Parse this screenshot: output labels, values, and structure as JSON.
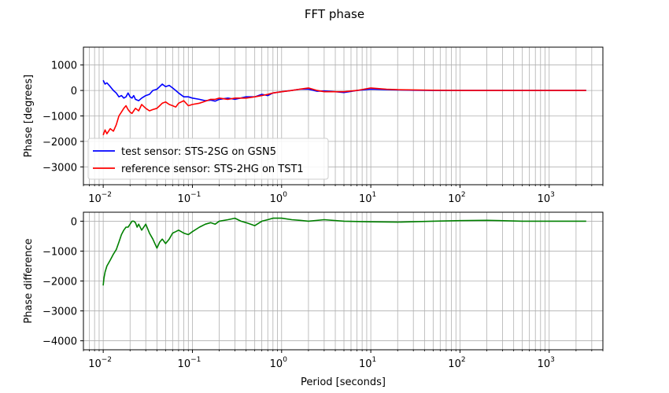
{
  "figure": {
    "title": "FFT phase",
    "background": "#ffffff"
  },
  "chart_data": [
    {
      "type": "line",
      "name": "top-panel",
      "xscale": "log",
      "xlim": [
        0.006,
        4000
      ],
      "ylim": [
        -3700,
        1700
      ],
      "xlabel": "",
      "ylabel": "Phase [degrees]",
      "grid": true,
      "x_ticks": [
        "10",
        "10",
        "10",
        "10",
        "10",
        "10"
      ],
      "x_tick_exponents": [
        "−2",
        "−1",
        "0",
        "1",
        "2",
        "3"
      ],
      "x_tick_values": [
        0.01,
        0.1,
        1,
        10,
        100,
        1000
      ],
      "y_ticks": [
        "1000",
        "0",
        "−1000",
        "−2000",
        "−3000"
      ],
      "y_tick_values": [
        1000,
        0,
        -1000,
        -2000,
        -3000
      ],
      "legend": {
        "placement": "lower-left"
      },
      "series": [
        {
          "name": "test sensor: STS-2SG on GSN5",
          "color": "#0000ff",
          "x": [
            0.01,
            0.0105,
            0.011,
            0.012,
            0.013,
            0.014,
            0.015,
            0.016,
            0.017,
            0.018,
            0.019,
            0.02,
            0.021,
            0.022,
            0.023,
            0.025,
            0.027,
            0.03,
            0.033,
            0.036,
            0.04,
            0.043,
            0.046,
            0.05,
            0.055,
            0.06,
            0.065,
            0.07,
            0.08,
            0.09,
            0.1,
            0.12,
            0.14,
            0.16,
            0.18,
            0.2,
            0.25,
            0.3,
            0.4,
            0.5,
            0.6,
            0.7,
            0.8,
            1.0,
            1.3,
            1.6,
            2.0,
            2.5,
            3.0,
            4.0,
            5.0,
            7.0,
            10,
            15,
            20,
            30,
            50,
            100,
            200,
            500,
            1000,
            2600
          ],
          "y": [
            400,
            250,
            300,
            150,
            0,
            -100,
            -250,
            -200,
            -300,
            -250,
            -100,
            -250,
            -300,
            -200,
            -350,
            -400,
            -300,
            -200,
            -150,
            0,
            50,
            150,
            250,
            150,
            200,
            100,
            0,
            -100,
            -250,
            -250,
            -300,
            -350,
            -400,
            -380,
            -420,
            -350,
            -300,
            -350,
            -250,
            -250,
            -150,
            -200,
            -100,
            -50,
            0,
            50,
            50,
            -30,
            -20,
            -50,
            -80,
            0,
            50,
            30,
            20,
            10,
            0,
            0,
            0,
            0,
            0,
            0
          ]
        },
        {
          "name": "reference sensor: STS-2HG on TST1",
          "color": "#ff0000",
          "x": [
            0.01,
            0.0105,
            0.011,
            0.012,
            0.013,
            0.014,
            0.015,
            0.016,
            0.017,
            0.018,
            0.019,
            0.02,
            0.021,
            0.022,
            0.023,
            0.025,
            0.027,
            0.03,
            0.033,
            0.036,
            0.04,
            0.043,
            0.046,
            0.05,
            0.055,
            0.06,
            0.065,
            0.07,
            0.08,
            0.09,
            0.1,
            0.12,
            0.14,
            0.16,
            0.18,
            0.2,
            0.25,
            0.3,
            0.4,
            0.5,
            0.6,
            0.7,
            0.8,
            1.0,
            1.3,
            1.6,
            2.0,
            2.5,
            3.0,
            4.0,
            5.0,
            7.0,
            10,
            15,
            20,
            30,
            50,
            100,
            200,
            500,
            1000,
            2600
          ],
          "y": [
            -1750,
            -1550,
            -1700,
            -1500,
            -1600,
            -1350,
            -1000,
            -850,
            -700,
            -600,
            -750,
            -850,
            -900,
            -800,
            -700,
            -800,
            -550,
            -700,
            -800,
            -750,
            -700,
            -600,
            -500,
            -450,
            -550,
            -600,
            -650,
            -500,
            -400,
            -600,
            -550,
            -500,
            -420,
            -350,
            -350,
            -300,
            -350,
            -300,
            -300,
            -250,
            -200,
            -150,
            -100,
            -50,
            0,
            50,
            100,
            0,
            -50,
            -50,
            -50,
            0,
            100,
            50,
            30,
            20,
            10,
            0,
            0,
            0,
            0,
            0
          ]
        }
      ]
    },
    {
      "type": "line",
      "name": "bottom-panel",
      "xscale": "log",
      "xlim": [
        0.006,
        4000
      ],
      "ylim": [
        -4300,
        300
      ],
      "xlabel": "Period [seconds]",
      "ylabel": "Phase difference",
      "grid": true,
      "x_ticks": [
        "10",
        "10",
        "10",
        "10",
        "10",
        "10"
      ],
      "x_tick_exponents": [
        "−2",
        "−1",
        "0",
        "1",
        "2",
        "3"
      ],
      "x_tick_values": [
        0.01,
        0.1,
        1,
        10,
        100,
        1000
      ],
      "y_ticks": [
        "0",
        "−1000",
        "−2000",
        "−3000",
        "−4000"
      ],
      "y_tick_values": [
        0,
        -1000,
        -2000,
        -3000,
        -4000
      ],
      "series": [
        {
          "name": "",
          "color": "#008000",
          "x": [
            0.01,
            0.0102,
            0.0105,
            0.011,
            0.012,
            0.013,
            0.014,
            0.015,
            0.016,
            0.017,
            0.018,
            0.019,
            0.02,
            0.021,
            0.022,
            0.023,
            0.024,
            0.025,
            0.027,
            0.03,
            0.033,
            0.036,
            0.04,
            0.043,
            0.046,
            0.05,
            0.055,
            0.06,
            0.065,
            0.07,
            0.08,
            0.09,
            0.1,
            0.12,
            0.14,
            0.16,
            0.18,
            0.2,
            0.25,
            0.3,
            0.35,
            0.4,
            0.45,
            0.5,
            0.6,
            0.7,
            0.8,
            1.0,
            1.3,
            1.6,
            2.0,
            3.0,
            5.0,
            10,
            20,
            50,
            100,
            200,
            500,
            1000,
            2600
          ],
          "y": [
            -2150,
            -1900,
            -1700,
            -1500,
            -1300,
            -1100,
            -950,
            -700,
            -450,
            -300,
            -200,
            -200,
            -100,
            0,
            0,
            -50,
            -200,
            -100,
            -300,
            -100,
            -400,
            -600,
            -900,
            -700,
            -600,
            -750,
            -600,
            -400,
            -350,
            -300,
            -400,
            -450,
            -350,
            -200,
            -100,
            -50,
            -100,
            0,
            50,
            100,
            0,
            -50,
            -100,
            -150,
            0,
            50,
            100,
            100,
            50,
            30,
            0,
            50,
            0,
            -20,
            -30,
            0,
            20,
            30,
            0,
            0,
            0
          ]
        }
      ]
    }
  ]
}
